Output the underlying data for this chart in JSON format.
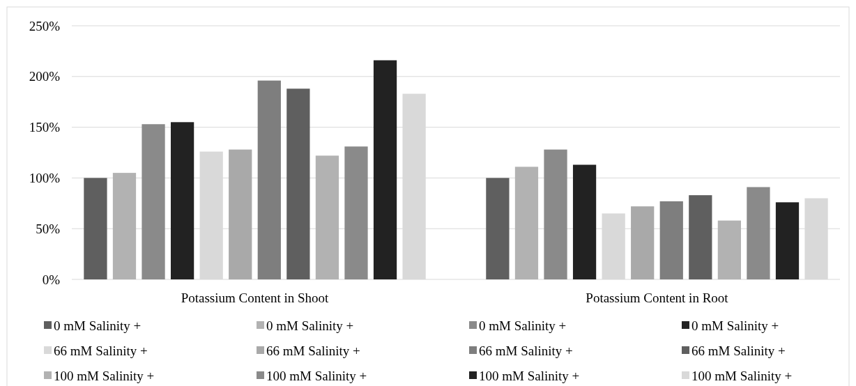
{
  "chart_data": {
    "type": "bar",
    "categories": [
      "Potassium Content in Shoot",
      "Potassium Content in Root"
    ],
    "series": [
      {
        "name": "0 mM Salinity +",
        "color": "#5f5f5f",
        "values": [
          100,
          100
        ]
      },
      {
        "name": "0 mM Salinity +",
        "color": "#b2b2b2",
        "values": [
          105,
          111
        ]
      },
      {
        "name": "0 mM Salinity +",
        "color": "#8a8a8a",
        "values": [
          153,
          128
        ]
      },
      {
        "name": "0 mM Salinity +",
        "color": "#222222",
        "values": [
          155,
          113
        ]
      },
      {
        "name": "66 mM Salinity +",
        "color": "#d9d9d9",
        "values": [
          126,
          65
        ]
      },
      {
        "name": "66 mM Salinity +",
        "color": "#a9a9a9",
        "values": [
          128,
          72
        ]
      },
      {
        "name": "66 mM Salinity +",
        "color": "#7e7e7e",
        "values": [
          196,
          77
        ]
      },
      {
        "name": "66 mM Salinity +",
        "color": "#5f5f5f",
        "values": [
          188,
          83
        ]
      },
      {
        "name": "100 mM Salinity +",
        "color": "#b2b2b2",
        "values": [
          122,
          58
        ]
      },
      {
        "name": "100 mM Salinity +",
        "color": "#8a8a8a",
        "values": [
          131,
          91
        ]
      },
      {
        "name": "100 mM Salinity +",
        "color": "#222222",
        "values": [
          216,
          76
        ]
      },
      {
        "name": "100 mM Salinity +",
        "color": "#d9d9d9",
        "values": [
          183,
          80
        ]
      }
    ],
    "ylim": [
      0,
      250
    ],
    "yticks": [
      {
        "value": 0,
        "label": "0%"
      },
      {
        "value": 50,
        "label": "50%"
      },
      {
        "value": 100,
        "label": "100%"
      },
      {
        "value": 150,
        "label": "150%"
      },
      {
        "value": 200,
        "label": "200%"
      },
      {
        "value": 250,
        "label": "250%"
      }
    ],
    "grid": "y",
    "legend": "bottom"
  }
}
